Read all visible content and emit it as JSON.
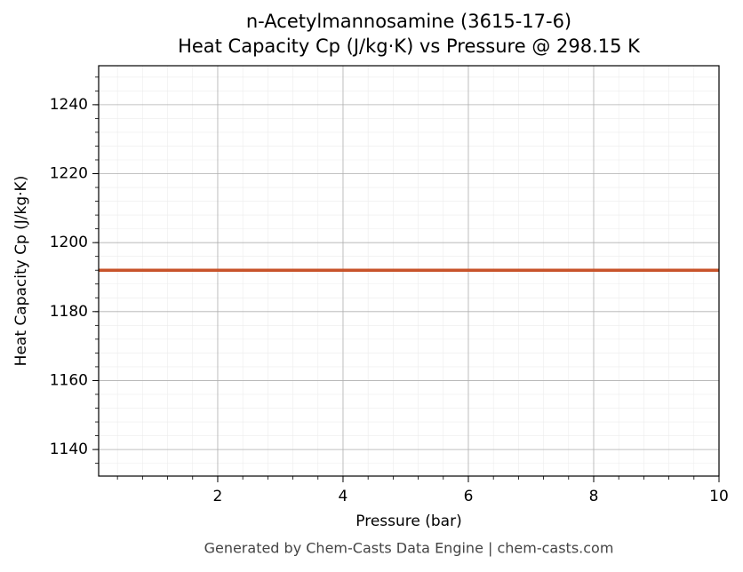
{
  "chart_data": {
    "type": "line",
    "title": "n-Acetylmannosamine (3615-17-6)",
    "subtitle": "Heat Capacity Cp (J/kg·K) vs Pressure @ 298.15 K",
    "x_label": "Pressure (bar)",
    "y_label": "Heat Capacity Cp (J/kg·K)",
    "footer": "Generated by Chem-Casts Data Engine | chem-casts.com",
    "x": [
      0.1,
      1,
      2,
      3,
      4,
      5,
      6,
      7,
      8,
      9,
      10
    ],
    "series": [
      {
        "name": "Cp",
        "color": "#c8532a",
        "values": [
          1192,
          1192,
          1192,
          1192,
          1192,
          1192,
          1192,
          1192,
          1192,
          1192,
          1192
        ]
      }
    ],
    "xlim": [
      0.1,
      10
    ],
    "ylim": [
      1132.3,
      1251.3
    ],
    "xticks": [
      2,
      4,
      6,
      8,
      10
    ],
    "yticks": [
      1140,
      1160,
      1180,
      1200,
      1220,
      1240
    ],
    "grid": true,
    "minor_grid": true
  }
}
